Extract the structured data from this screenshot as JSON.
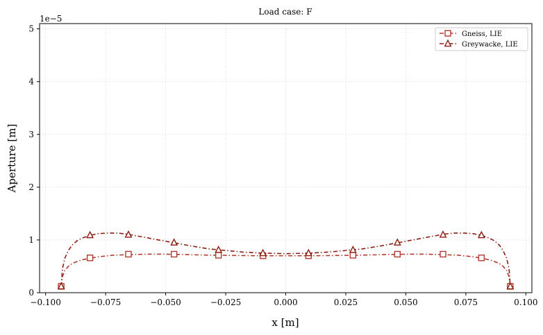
{
  "chart_data": {
    "type": "line",
    "title": "Load case: F",
    "xlabel": "x [m]",
    "ylabel": "Aperture [m]",
    "y_offset_label": "1e−5",
    "xlim": [
      -0.1025,
      0.1025
    ],
    "ylim": [
      0,
      5.1
    ],
    "grid": true,
    "legend_position": "top-right",
    "x_ticks": [
      -0.1,
      -0.075,
      -0.05,
      -0.025,
      0.0,
      0.025,
      0.05,
      0.075,
      0.1
    ],
    "x_tick_labels": [
      "−0.100",
      "−0.075",
      "−0.050",
      "−0.025",
      "0.000",
      "0.025",
      "0.050",
      "0.075",
      "0.100"
    ],
    "y_ticks": [
      0,
      1,
      2,
      3,
      4,
      5
    ],
    "y_tick_labels": [
      "0",
      "1",
      "2",
      "3",
      "4",
      "5"
    ],
    "series": [
      {
        "name": "Gneiss, LIE",
        "color": "#b23a2e",
        "marker": "square",
        "curve_x": [
          -0.0935,
          -0.093,
          -0.092,
          -0.0905,
          -0.089,
          -0.087,
          -0.085,
          -0.082,
          -0.078,
          -0.072,
          -0.066,
          -0.058,
          -0.05,
          -0.04,
          -0.03,
          -0.02,
          -0.01,
          0.0,
          0.01,
          0.02,
          0.03,
          0.04,
          0.05,
          0.058,
          0.066,
          0.072,
          0.078,
          0.082,
          0.085,
          0.087,
          0.089,
          0.0905,
          0.092,
          0.093,
          0.0935
        ],
        "curve_y": [
          0.12,
          0.3,
          0.42,
          0.5,
          0.55,
          0.59,
          0.62,
          0.65,
          0.68,
          0.71,
          0.72,
          0.73,
          0.73,
          0.72,
          0.71,
          0.705,
          0.7,
          0.7,
          0.7,
          0.705,
          0.71,
          0.72,
          0.73,
          0.73,
          0.72,
          0.71,
          0.68,
          0.65,
          0.62,
          0.59,
          0.55,
          0.5,
          0.42,
          0.3,
          0.12
        ],
        "marker_x": [
          -0.0935,
          -0.0815,
          -0.0655,
          -0.0465,
          -0.028,
          -0.0095,
          0.0095,
          0.028,
          0.0465,
          0.0655,
          0.0815,
          0.0935
        ],
        "marker_y": [
          0.12,
          0.66,
          0.73,
          0.73,
          0.71,
          0.7,
          0.7,
          0.71,
          0.73,
          0.73,
          0.66,
          0.12
        ]
      },
      {
        "name": "Greywacke, LIE",
        "color": "#8b1e12",
        "marker": "triangle",
        "curve_x": [
          -0.0935,
          -0.093,
          -0.092,
          -0.0905,
          -0.089,
          -0.087,
          -0.085,
          -0.082,
          -0.078,
          -0.074,
          -0.07,
          -0.066,
          -0.06,
          -0.053,
          -0.047,
          -0.04,
          -0.032,
          -0.025,
          -0.018,
          -0.01,
          0.0,
          0.01,
          0.018,
          0.025,
          0.032,
          0.04,
          0.047,
          0.053,
          0.06,
          0.066,
          0.07,
          0.074,
          0.078,
          0.082,
          0.085,
          0.087,
          0.089,
          0.0905,
          0.092,
          0.093,
          0.0935
        ],
        "curve_y": [
          0.12,
          0.45,
          0.65,
          0.8,
          0.9,
          0.98,
          1.03,
          1.08,
          1.12,
          1.13,
          1.13,
          1.11,
          1.06,
          1.0,
          0.95,
          0.89,
          0.83,
          0.8,
          0.77,
          0.75,
          0.74,
          0.75,
          0.77,
          0.8,
          0.83,
          0.89,
          0.95,
          1.0,
          1.06,
          1.11,
          1.13,
          1.13,
          1.12,
          1.08,
          1.03,
          0.98,
          0.9,
          0.8,
          0.65,
          0.45,
          0.12
        ],
        "marker_x": [
          -0.0935,
          -0.0815,
          -0.0655,
          -0.0465,
          -0.028,
          -0.0095,
          0.0095,
          0.028,
          0.0465,
          0.0655,
          0.0815,
          0.0935
        ],
        "marker_y": [
          0.12,
          1.09,
          1.1,
          0.95,
          0.81,
          0.75,
          0.75,
          0.81,
          0.95,
          1.1,
          1.09,
          0.12
        ]
      }
    ]
  }
}
